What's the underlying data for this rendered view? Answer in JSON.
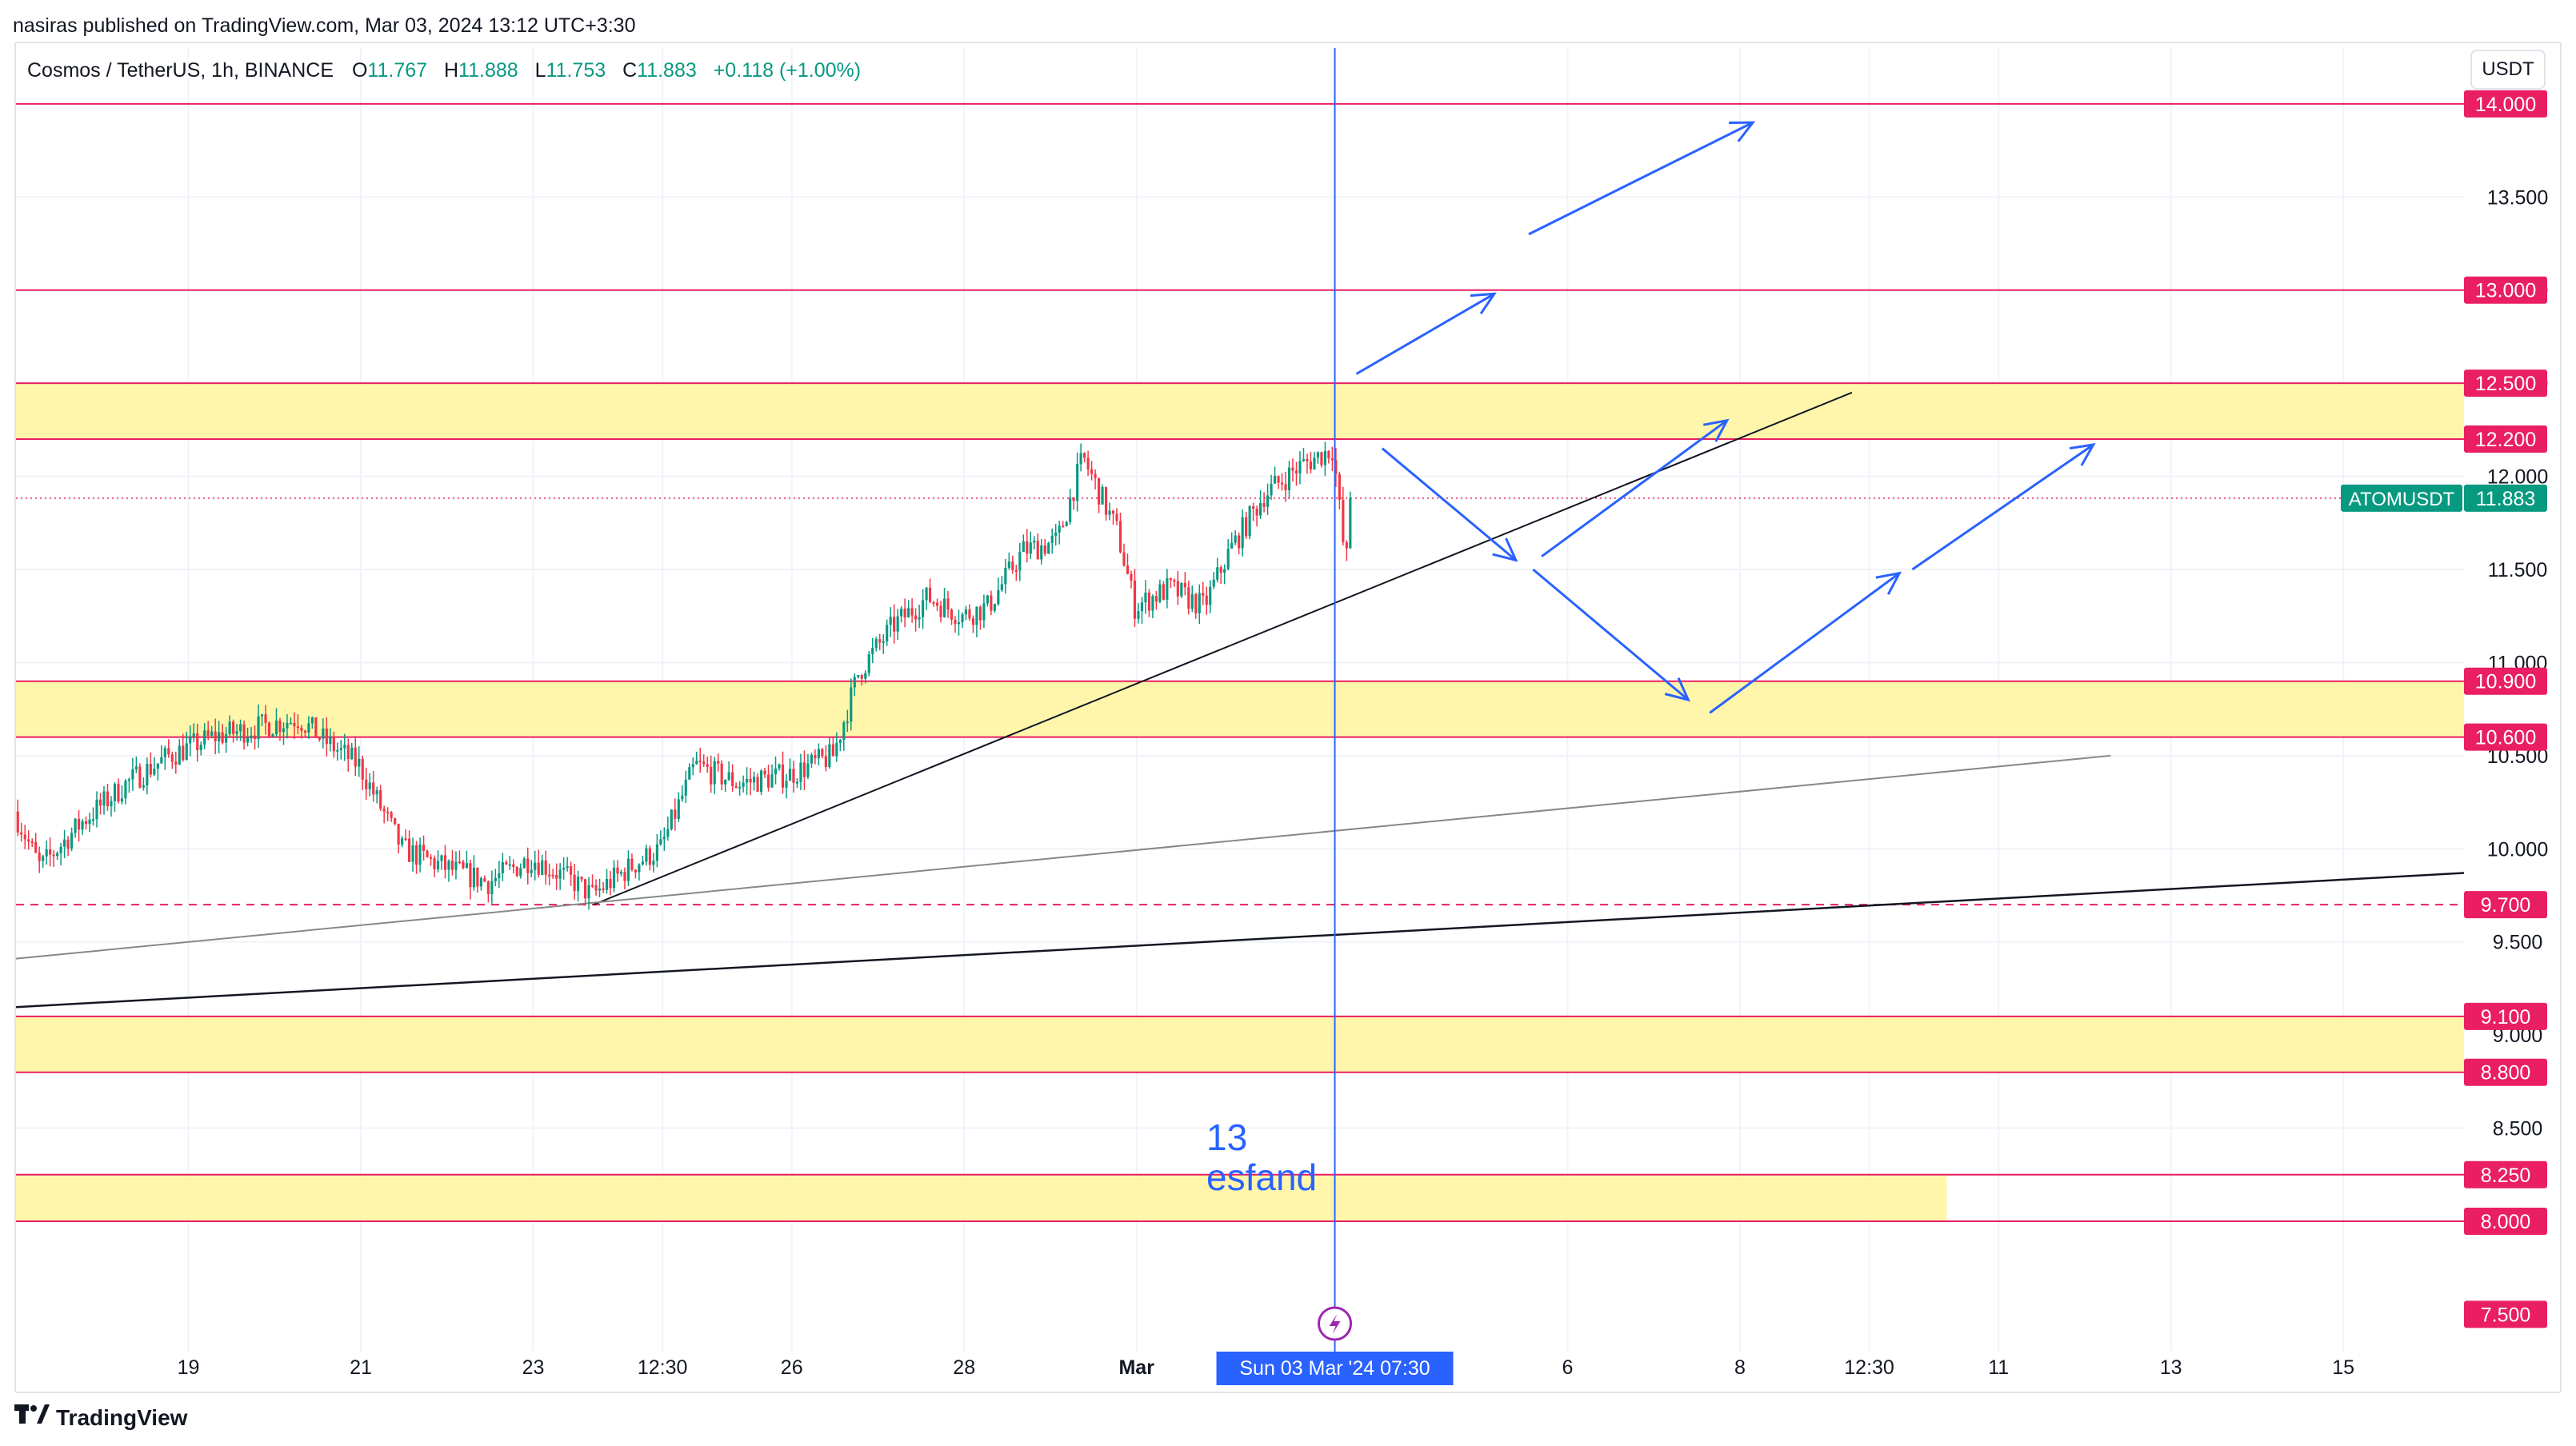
{
  "publish_line": "nasiras published on TradingView.com, Mar 03, 2024 13:12 UTC+3:30",
  "legend": {
    "symbol": "Cosmos / TetherUS, 1h, BINANCE",
    "open_label": "O",
    "open": "11.767",
    "high_label": "H",
    "high": "11.888",
    "low_label": "L",
    "low": "11.753",
    "close_label": "C",
    "close": "11.883",
    "change": "+0.118 (+1.00%)"
  },
  "currency_button": "USDT",
  "brand": "TradingView",
  "annotation": {
    "line1": "13",
    "line2": "esfand"
  },
  "colors": {
    "up": "#089981",
    "down": "#f23645",
    "level": "#e91e63",
    "zone": "#fff59d",
    "arrow": "#2962ff",
    "cursor": "#2962ff",
    "axis_text": "#131722"
  },
  "chart_data": {
    "type": "candlestick",
    "title": "Cosmos / TetherUS, 1h, BINANCE",
    "ylim": [
      7.3,
      14.3
    ],
    "y_ticks": [
      8.5,
      9.0,
      9.5,
      10.0,
      10.5,
      11.0,
      11.5,
      12.0,
      12.5,
      13.0,
      13.5
    ],
    "y_tick_labels": [
      "8.500",
      "9.000",
      "9.500",
      "10.000",
      "10.500",
      "11.000",
      "11.500",
      "12.000",
      "12.500",
      "13.000",
      "13.500"
    ],
    "x_tick_labels": [
      {
        "t": 2.0,
        "label": "19"
      },
      {
        "t": 4.0,
        "label": "21"
      },
      {
        "t": 6.0,
        "label": "23"
      },
      {
        "t": 7.5,
        "label": "12:30"
      },
      {
        "t": 9.0,
        "label": "26"
      },
      {
        "t": 11.0,
        "label": "28"
      },
      {
        "t": 13.0,
        "label": "Mar",
        "bold": true
      },
      {
        "t": 18.0,
        "label": "6"
      },
      {
        "t": 20.0,
        "label": "8"
      },
      {
        "t": 21.5,
        "label": "12:30"
      },
      {
        "t": 23.0,
        "label": "11"
      },
      {
        "t": 25.0,
        "label": "13"
      },
      {
        "t": 27.0,
        "label": "15"
      }
    ],
    "cursor": {
      "t": 15.3,
      "label": "Sun 03 Mar '24   07:30"
    },
    "price_labels": [
      {
        "value": 14.0,
        "text": "14.000"
      },
      {
        "value": 13.0,
        "text": "13.000"
      },
      {
        "value": 12.5,
        "text": "12.500"
      },
      {
        "value": 12.2,
        "text": "12.200"
      },
      {
        "value": 10.9,
        "text": "10.900"
      },
      {
        "value": 10.6,
        "text": "10.600"
      },
      {
        "value": 9.7,
        "text": "9.700"
      },
      {
        "value": 9.1,
        "text": "9.100"
      },
      {
        "value": 8.8,
        "text": "8.800"
      },
      {
        "value": 8.25,
        "text": "8.250"
      },
      {
        "value": 8.0,
        "text": "8.000"
      },
      {
        "value": 7.5,
        "text": "7.500"
      }
    ],
    "last_price": {
      "value": 11.883,
      "symbol": "ATOMUSDT",
      "text": "11.883"
    },
    "horizontal_levels": [
      14.0,
      13.0,
      12.5,
      12.2,
      10.9,
      10.6,
      9.1,
      8.8,
      8.25,
      8.0
    ],
    "dashed_levels": [
      9.7
    ],
    "zones": [
      {
        "from": 12.2,
        "to": 12.5,
        "t_end": 28.4
      },
      {
        "from": 10.6,
        "to": 10.9,
        "t_end": 28.4
      },
      {
        "from": 8.8,
        "to": 9.1,
        "t_end": 28.4
      },
      {
        "from": 8.0,
        "to": 8.25,
        "t_end": 22.4
      }
    ],
    "trendlines": [
      {
        "t1": 6.7,
        "y1": 9.7,
        "t2": 21.3,
        "y2": 12.45,
        "color": "#131722",
        "width": 2
      },
      {
        "t1": 0.0,
        "y1": 9.41,
        "t2": 24.3,
        "y2": 10.5,
        "color": "#888888",
        "width": 2
      },
      {
        "t1": 0.0,
        "y1": 9.15,
        "t2": 28.4,
        "y2": 9.87,
        "color": "#131722",
        "width": 2.5
      }
    ],
    "arrows": [
      {
        "t1": 15.55,
        "y1": 12.55,
        "t2": 17.15,
        "y2": 12.98
      },
      {
        "t1": 17.55,
        "y1": 13.3,
        "t2": 20.15,
        "y2": 13.9
      },
      {
        "t1": 15.85,
        "y1": 12.15,
        "t2": 17.4,
        "y2": 11.55
      },
      {
        "t1": 17.7,
        "y1": 11.57,
        "t2": 19.85,
        "y2": 12.3
      },
      {
        "t1": 17.6,
        "y1": 11.5,
        "t2": 19.4,
        "y2": 10.8
      },
      {
        "t1": 19.65,
        "y1": 10.73,
        "t2": 21.85,
        "y2": 11.48
      },
      {
        "t1": 22.0,
        "y1": 11.5,
        "t2": 24.1,
        "y2": 12.17
      }
    ],
    "price_anchors": [
      [
        0.0,
        10.2
      ],
      [
        0.3,
        9.9
      ],
      [
        0.8,
        10.15
      ],
      [
        1.3,
        10.35
      ],
      [
        1.8,
        10.5
      ],
      [
        2.3,
        10.6
      ],
      [
        2.8,
        10.65
      ],
      [
        3.3,
        10.7
      ],
      [
        3.6,
        10.58
      ],
      [
        4.0,
        10.45
      ],
      [
        4.5,
        10.0
      ],
      [
        5.0,
        9.9
      ],
      [
        5.5,
        9.82
      ],
      [
        6.0,
        9.95
      ],
      [
        6.5,
        9.82
      ],
      [
        6.7,
        9.75
      ],
      [
        7.2,
        9.92
      ],
      [
        7.5,
        10.0
      ],
      [
        7.9,
        10.45
      ],
      [
        8.4,
        10.35
      ],
      [
        9.0,
        10.4
      ],
      [
        9.5,
        10.5
      ],
      [
        9.8,
        10.95
      ],
      [
        10.2,
        11.2
      ],
      [
        10.6,
        11.35
      ],
      [
        11.0,
        11.25
      ],
      [
        11.3,
        11.3
      ],
      [
        11.7,
        11.6
      ],
      [
        12.1,
        11.65
      ],
      [
        12.4,
        12.1
      ],
      [
        12.8,
        11.7
      ],
      [
        13.0,
        11.3
      ],
      [
        13.4,
        11.4
      ],
      [
        13.8,
        11.3
      ],
      [
        14.1,
        11.6
      ],
      [
        14.5,
        11.9
      ],
      [
        14.9,
        12.05
      ],
      [
        15.3,
        12.15
      ],
      [
        15.45,
        11.5
      ],
      [
        15.5,
        11.883
      ]
    ],
    "hourly_candles": 372
  }
}
